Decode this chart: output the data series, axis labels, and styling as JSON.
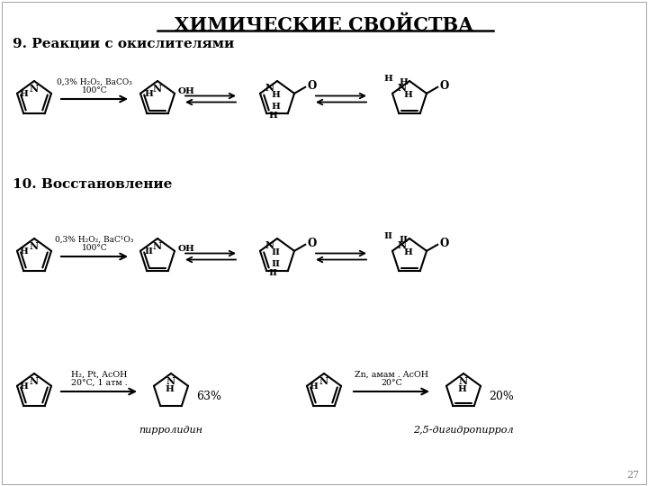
{
  "title": "ХИМИЧЕСКИЕ СВОЙСТВА",
  "section1": "9. Реакции с окислителями",
  "section2": "10. Восстановление",
  "bg_color": "#ffffff",
  "text_color": "#000000",
  "page_number": "27",
  "cond1_line1": "0,3% H₂O₂, BaCO₃",
  "cond1_line2": "100°C",
  "cond2_line1": "0,3% H₂O₂, BaC¹O₃",
  "cond2_line2": "100°C",
  "cond3_line1": "H₂, Pt, AcOH",
  "cond3_line2": "20°C, 1 атм .",
  "cond4_line1": "Zn, амам . AcOH",
  "cond4_line2": "20°C",
  "yield3": "63%",
  "name3": "пирролидин",
  "yield4": "20%",
  "name4": "2,5-дигидропиррол"
}
